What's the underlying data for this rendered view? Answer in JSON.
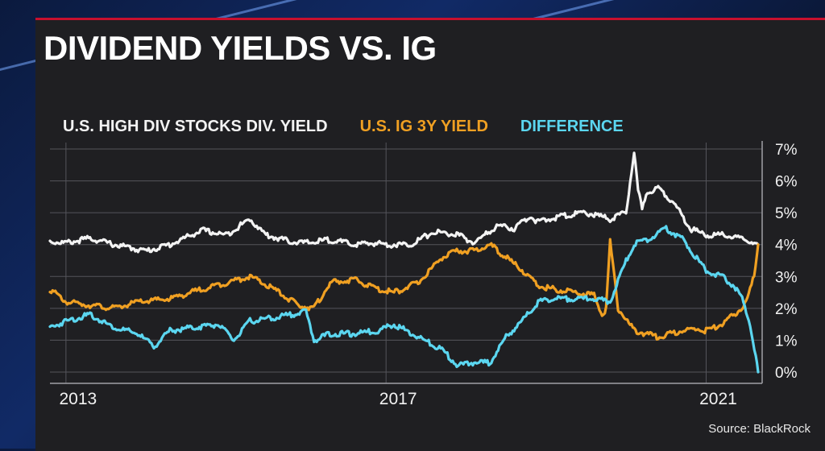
{
  "title": "DIVIDEND YIELDS VS. IG",
  "source": "Source: BlackRock",
  "colors": {
    "panel": "#1f1f22",
    "accent": "#c8102e",
    "high_div": "#f3f3f3",
    "ig": "#f0a022",
    "difference": "#5bd6f0"
  },
  "legend": [
    "U.S. HIGH DIV STOCKS DIV. YIELD",
    "U.S. IG 3Y YIELD",
    "DIFFERENCE"
  ],
  "chart_data": {
    "type": "line",
    "xlim": [
      2012.8,
      2021.7
    ],
    "ylim": [
      0,
      7
    ],
    "x_ticks": [
      2013,
      2017,
      2021
    ],
    "x_tick_labels": [
      "2013",
      "2017",
      "2021"
    ],
    "y_ticks": [
      0,
      1,
      2,
      3,
      4,
      5,
      6,
      7
    ],
    "y_tick_labels": [
      "0%",
      "1%",
      "2%",
      "3%",
      "4%",
      "5%",
      "6%",
      "7%"
    ],
    "grid": true,
    "legend_position": "top-left",
    "series": [
      {
        "name": "U.S. HIGH DIV STOCKS DIV. YIELD",
        "color": "#f3f3f3",
        "x": [
          2012.8,
          2013.0,
          2013.3,
          2013.6,
          2014.0,
          2014.3,
          2014.7,
          2015.0,
          2015.3,
          2015.5,
          2015.8,
          2016.0,
          2016.3,
          2016.6,
          2016.9,
          2017.0,
          2017.3,
          2017.6,
          2017.9,
          2018.1,
          2018.4,
          2018.6,
          2018.8,
          2018.9,
          2019.2,
          2019.5,
          2019.8,
          2020.0,
          2020.1,
          2020.15,
          2020.2,
          2020.25,
          2020.4,
          2020.6,
          2020.8,
          2021.0,
          2021.2,
          2021.4,
          2021.55,
          2021.65
        ],
        "y": [
          4.1,
          4.05,
          4.2,
          4.0,
          3.8,
          4.0,
          4.45,
          4.3,
          4.8,
          4.3,
          4.1,
          4.05,
          4.15,
          4.0,
          4.05,
          4.0,
          4.0,
          4.4,
          4.3,
          4.05,
          4.6,
          4.5,
          4.9,
          4.7,
          4.9,
          5.0,
          4.8,
          5.0,
          6.9,
          5.7,
          5.1,
          5.6,
          5.8,
          5.3,
          4.5,
          4.3,
          4.3,
          4.2,
          4.1,
          4.0
        ]
      },
      {
        "name": "U.S. IG 3Y YIELD",
        "color": "#f0a022",
        "x": [
          2012.8,
          2013.0,
          2013.3,
          2013.6,
          2013.9,
          2014.3,
          2014.7,
          2015.0,
          2015.3,
          2015.6,
          2015.9,
          2016.1,
          2016.3,
          2016.6,
          2016.9,
          2017.1,
          2017.4,
          2017.7,
          2017.9,
          2018.1,
          2018.3,
          2018.5,
          2018.7,
          2018.9,
          2019.1,
          2019.4,
          2019.6,
          2019.7,
          2019.75,
          2019.8,
          2019.9,
          2020.1,
          2020.4,
          2020.7,
          2020.9,
          2021.0,
          2021.2,
          2021.4,
          2021.5,
          2021.6,
          2021.65
        ],
        "y": [
          2.6,
          2.2,
          2.1,
          2.0,
          2.2,
          2.3,
          2.6,
          2.8,
          3.0,
          2.6,
          2.1,
          2.0,
          2.8,
          2.9,
          2.6,
          2.5,
          2.8,
          3.6,
          3.8,
          3.8,
          4.0,
          3.6,
          3.2,
          2.7,
          2.6,
          2.5,
          2.4,
          1.8,
          2.0,
          4.1,
          2.0,
          1.3,
          1.1,
          1.3,
          1.35,
          1.3,
          1.5,
          1.9,
          2.2,
          3.0,
          4.0
        ]
      },
      {
        "name": "DIFFERENCE",
        "color": "#5bd6f0",
        "x": [
          2012.8,
          2013.0,
          2013.3,
          2013.6,
          2013.9,
          2014.1,
          2014.3,
          2014.6,
          2014.9,
          2015.1,
          2015.3,
          2015.6,
          2015.8,
          2016.0,
          2016.1,
          2016.3,
          2016.6,
          2016.9,
          2017.1,
          2017.4,
          2017.7,
          2017.9,
          2018.1,
          2018.3,
          2018.5,
          2018.7,
          2018.9,
          2019.1,
          2019.4,
          2019.6,
          2019.8,
          2020.0,
          2020.1,
          2020.3,
          2020.5,
          2020.7,
          2020.9,
          2021.0,
          2021.2,
          2021.35,
          2021.45,
          2021.55,
          2021.62,
          2021.65
        ],
        "y": [
          1.4,
          1.6,
          1.8,
          1.4,
          1.2,
          0.8,
          1.3,
          1.4,
          1.5,
          1.0,
          1.6,
          1.7,
          1.8,
          1.9,
          1.0,
          1.2,
          1.2,
          1.3,
          1.5,
          1.1,
          0.7,
          0.2,
          0.3,
          0.3,
          1.1,
          1.6,
          2.2,
          2.3,
          2.3,
          2.3,
          2.2,
          3.5,
          4.0,
          4.2,
          4.5,
          4.2,
          3.5,
          3.2,
          3.0,
          2.7,
          2.3,
          1.5,
          0.5,
          0.0
        ]
      }
    ]
  }
}
